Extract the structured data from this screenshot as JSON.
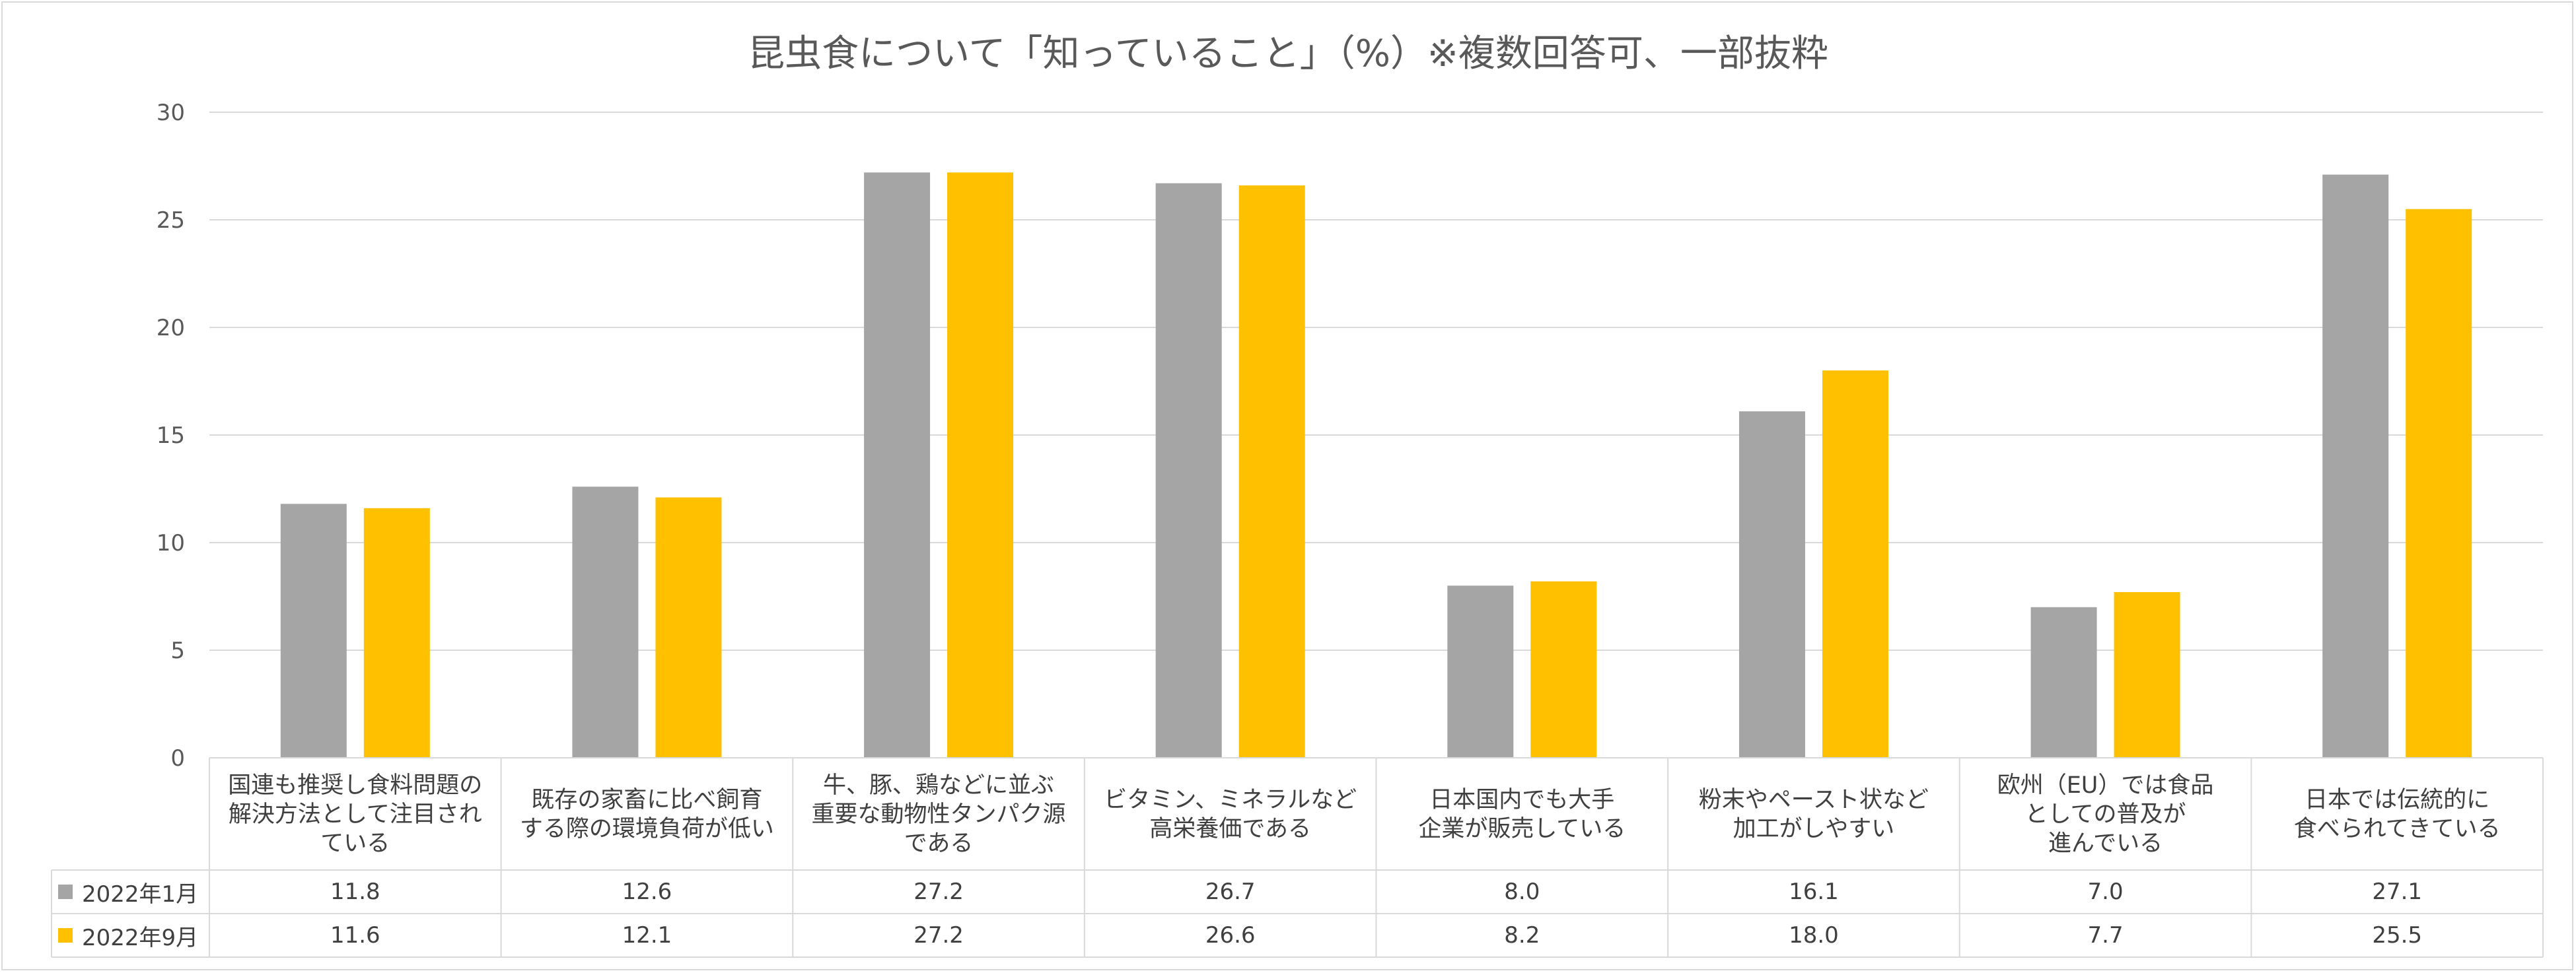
{
  "chart_data": {
    "type": "bar",
    "title": "昆虫食について「知っていること」（%）※複数回答可、一部抜粋",
    "categories": [
      "国連も推奨し食料問題の\n解決方法として注目され\nている",
      "既存の家畜に比べ飼育\nする際の環境負荷が低い",
      "牛、豚、鶏などに並ぶ\n重要な動物性タンパク源\nである",
      "ビタミン、ミネラルなど\n高栄養価である",
      "日本国内でも大手\n企業が販売している",
      "粉末やペースト状など\n加工がしやすい",
      "欧州（EU）では食品\nとしての普及が\n進んでいる",
      "日本では伝統的に\n食べられてきている"
    ],
    "series": [
      {
        "name": "2022年1月",
        "color": "#a5a5a5",
        "values": [
          11.8,
          12.6,
          27.2,
          26.7,
          8.0,
          16.1,
          7.0,
          27.1
        ],
        "labels": [
          "11.8",
          "12.6",
          "27.2",
          "26.7",
          "8.0",
          "16.1",
          "7.0",
          "27.1"
        ]
      },
      {
        "name": "2022年9月",
        "color": "#ffc000",
        "values": [
          11.6,
          12.1,
          27.2,
          26.6,
          8.2,
          18.0,
          7.7,
          25.5
        ],
        "labels": [
          "11.6",
          "12.1",
          "27.2",
          "26.6",
          "8.2",
          "18.0",
          "7.7",
          "25.5"
        ]
      }
    ],
    "ylim": [
      0,
      30
    ],
    "yticks": [
      "0",
      "5",
      "10",
      "15",
      "20",
      "25",
      "30"
    ],
    "grid": true,
    "data_table": true,
    "gridline_color": "#d9d9d9"
  }
}
